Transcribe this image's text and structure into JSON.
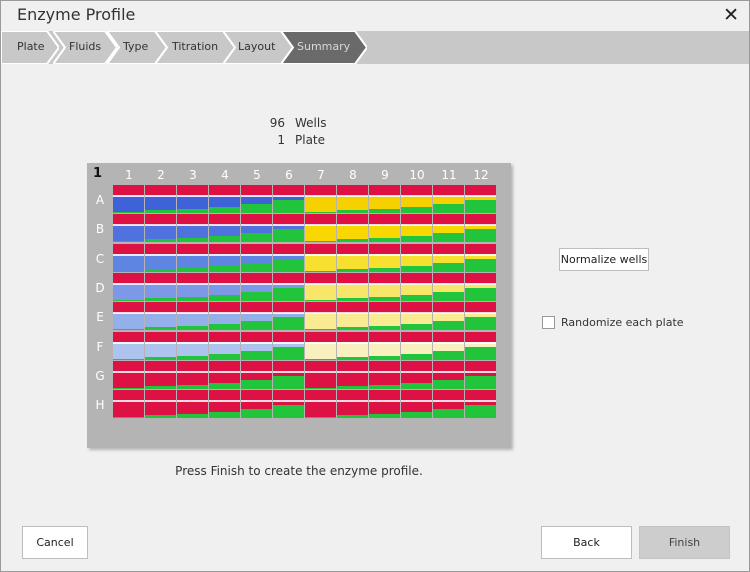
{
  "window": {
    "title": "Enzyme Profile",
    "close_glyph": "✕"
  },
  "steps": [
    {
      "label": "Plate",
      "state": "done"
    },
    {
      "label": "Fluids",
      "state": "done"
    },
    {
      "label": "Type",
      "state": "done"
    },
    {
      "label": "Titration",
      "state": "done"
    },
    {
      "label": "Layout",
      "state": "done"
    },
    {
      "label": "Summary",
      "state": "active"
    }
  ],
  "summary": {
    "wells_count": "96",
    "wells_label": "Wells",
    "plates_count": "1",
    "plates_label": "Plate"
  },
  "plate": {
    "number": "1",
    "columns": [
      "1",
      "2",
      "3",
      "4",
      "5",
      "6",
      "7",
      "8",
      "9",
      "10",
      "11",
      "12"
    ],
    "rows": [
      "A",
      "B",
      "C",
      "D",
      "E",
      "F",
      "G",
      "H"
    ],
    "colors": {
      "background": "#dd1144",
      "blue_group_fluid": [
        "#3f62d8",
        "#4f72de",
        "#5f85e2",
        "#7c98e6",
        "#94b0ea",
        "#adc5ee",
        "#dd1144",
        "#dd1144"
      ],
      "yellow_group_fluid": [
        "#f7d000",
        "#f8d800",
        "#f8e030",
        "#f8e66a",
        "#f8eb92",
        "#f8f1bf",
        "#dd1144",
        "#dd1144"
      ],
      "green_titration": "#22c43c",
      "separator": "#ffffff"
    },
    "green_fraction_by_column": [
      0.05,
      0.09,
      0.14,
      0.22,
      0.32,
      0.45,
      0.05,
      0.09,
      0.14,
      0.22,
      0.32,
      0.45
    ]
  },
  "actions": {
    "normalize_label": "Normalize wells",
    "randomize_label": "Randomize each plate",
    "randomize_checked": false
  },
  "message": "Press Finish to create the enzyme profile.",
  "footer": {
    "cancel_label": "Cancel",
    "back_label": "Back",
    "finish_label": "Finish"
  }
}
